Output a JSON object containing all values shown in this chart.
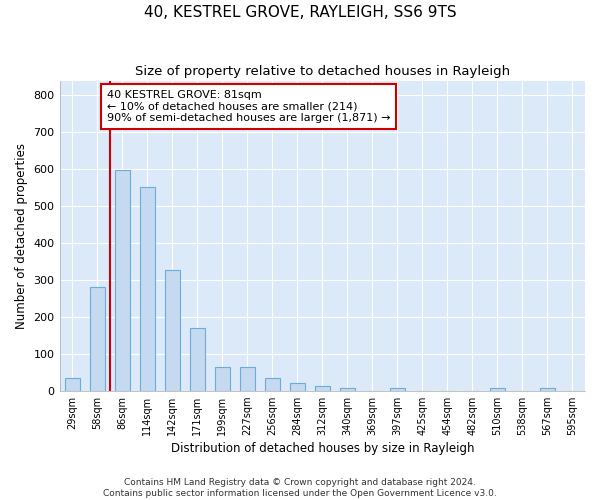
{
  "title": "40, KESTREL GROVE, RAYLEIGH, SS6 9TS",
  "subtitle": "Size of property relative to detached houses in Rayleigh",
  "xlabel": "Distribution of detached houses by size in Rayleigh",
  "ylabel": "Number of detached properties",
  "bar_color": "#c5d9f0",
  "bar_edge_color": "#6aaed6",
  "categories": [
    "29sqm",
    "58sqm",
    "86sqm",
    "114sqm",
    "142sqm",
    "171sqm",
    "199sqm",
    "227sqm",
    "256sqm",
    "284sqm",
    "312sqm",
    "340sqm",
    "369sqm",
    "397sqm",
    "425sqm",
    "454sqm",
    "482sqm",
    "510sqm",
    "538sqm",
    "567sqm",
    "595sqm"
  ],
  "values": [
    35,
    280,
    597,
    553,
    328,
    170,
    65,
    63,
    35,
    20,
    12,
    8,
    0,
    8,
    0,
    0,
    0,
    8,
    0,
    8,
    0
  ],
  "vline_x": 1.5,
  "vline_color": "#cc0000",
  "annotation_text": "40 KESTREL GROVE: 81sqm\n← 10% of detached houses are smaller (214)\n90% of semi-detached houses are larger (1,871) →",
  "ylim": [
    0,
    840
  ],
  "yticks": [
    0,
    100,
    200,
    300,
    400,
    500,
    600,
    700,
    800
  ],
  "background_color": "#dce9f8",
  "grid_color": "#ffffff",
  "footer": "Contains HM Land Registry data © Crown copyright and database right 2024.\nContains public sector information licensed under the Open Government Licence v3.0.",
  "title_fontsize": 11,
  "subtitle_fontsize": 9.5,
  "xlabel_fontsize": 8.5,
  "ylabel_fontsize": 8.5,
  "annotation_fontsize": 8,
  "footer_fontsize": 6.5,
  "bar_width": 0.6
}
